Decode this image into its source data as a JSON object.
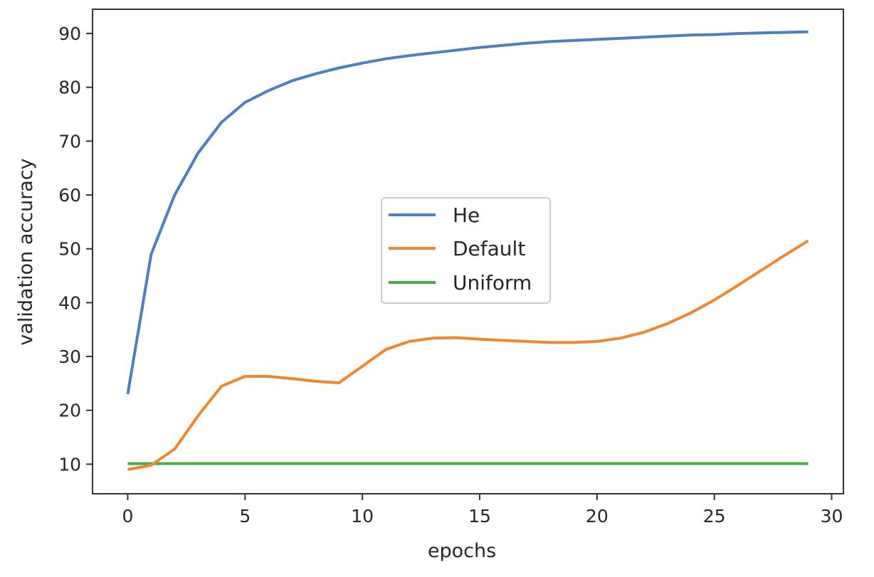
{
  "chart_data": {
    "type": "line",
    "title": "",
    "xlabel": "epochs",
    "ylabel": "validation accuracy",
    "xlim": [
      -1.5,
      30.5
    ],
    "ylim": [
      4.5,
      94.5
    ],
    "xticks": [
      0,
      5,
      10,
      15,
      20,
      25,
      30
    ],
    "yticks": [
      10,
      20,
      30,
      40,
      50,
      60,
      70,
      80,
      90
    ],
    "grid": false,
    "legend": {
      "position": "center"
    },
    "x": [
      0,
      1,
      2,
      3,
      4,
      5,
      6,
      7,
      8,
      9,
      10,
      11,
      12,
      13,
      14,
      15,
      16,
      17,
      18,
      19,
      20,
      21,
      22,
      23,
      24,
      25,
      26,
      27,
      28,
      29
    ],
    "series": [
      {
        "name": "He",
        "color": "#4c7fbf",
        "values": [
          23.0,
          49.0,
          60.0,
          67.8,
          73.5,
          77.2,
          79.4,
          81.2,
          82.5,
          83.6,
          84.5,
          85.3,
          85.9,
          86.4,
          86.9,
          87.4,
          87.8,
          88.2,
          88.5,
          88.7,
          88.9,
          89.1,
          89.3,
          89.5,
          89.7,
          89.8,
          90.0,
          90.1,
          90.2,
          90.3
        ]
      },
      {
        "name": "Default",
        "color": "#f0862d",
        "values": [
          9.0,
          9.8,
          12.8,
          19.0,
          24.5,
          26.3,
          26.3,
          25.9,
          25.4,
          25.1,
          28.2,
          31.3,
          32.8,
          33.4,
          33.5,
          33.2,
          33.0,
          32.8,
          32.6,
          32.6,
          32.8,
          33.4,
          34.5,
          36.1,
          38.1,
          40.5,
          43.2,
          46.0,
          48.8,
          51.5
        ]
      },
      {
        "name": "Uniform",
        "color": "#4aa945",
        "values": [
          10.1,
          10.1,
          10.1,
          10.1,
          10.1,
          10.1,
          10.1,
          10.1,
          10.1,
          10.1,
          10.1,
          10.1,
          10.1,
          10.1,
          10.1,
          10.1,
          10.1,
          10.1,
          10.1,
          10.1,
          10.1,
          10.1,
          10.1,
          10.1,
          10.1,
          10.1,
          10.1,
          10.1,
          10.1,
          10.1
        ]
      }
    ]
  }
}
